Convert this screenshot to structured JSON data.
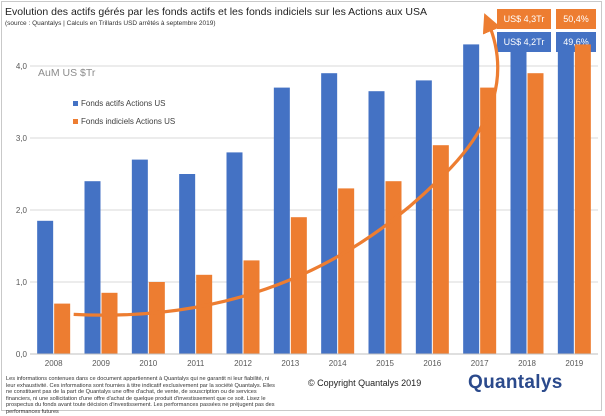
{
  "header": {
    "title": "Evolution des actifs gérés par les fonds actifs et les fonds indiciels sur les Actions aux USA",
    "subtitle": "(source : Quantalys | Calculs en Trillards USD arrêtés à septembre 2019)"
  },
  "callouts": {
    "passive_value": "US$ 4,3Tr",
    "passive_share": "50,4%",
    "active_value": "US$ 4,2Tr",
    "active_share": "49,6%"
  },
  "colors": {
    "active": "#4472C4",
    "passive": "#ED7D31",
    "grid": "#d9d9d9",
    "axis_text": "#595959"
  },
  "chart_data": {
    "type": "bar",
    "title": "AuM US $Tr",
    "categories": [
      "2008",
      "2009",
      "2010",
      "2011",
      "2012",
      "2013",
      "2014",
      "2015",
      "2016",
      "2017",
      "2018",
      "2019"
    ],
    "series": [
      {
        "name": "Fonds actifs Actions US",
        "color": "#4472C4",
        "values": [
          1.85,
          2.4,
          2.7,
          2.5,
          2.8,
          3.7,
          3.9,
          3.65,
          3.8,
          4.3,
          4.25,
          4.2
        ]
      },
      {
        "name": "Fonds indiciels Actions US",
        "color": "#ED7D31",
        "values": [
          0.7,
          0.85,
          1.0,
          1.1,
          1.3,
          1.9,
          2.3,
          2.4,
          2.9,
          3.7,
          3.9,
          4.3
        ]
      }
    ],
    "yticks": [
      "0,0",
      "1,0",
      "2,0",
      "3,0",
      "4,0"
    ],
    "ylim": [
      0,
      4.5
    ],
    "grid": true,
    "legend_position": "left",
    "trend_arrow": true
  },
  "footer": {
    "disclaimer": "Les informations contenues dans ce document appartiennent à Quantalys qui ne garantit ni leur fiabilité, ni leur exhaustivité. Ces informations sont fournies à titre indicatif exclusivement par la société Quantalys. Elles ne constituent pas de la part de Quantalys une offre d'achat, de vente, de souscription ou de services financiers, ni une sollicitation d'une offre d'achat de quelque produit d'investissement que ce soit. Lisez le prospectus du fonds avant toute décision d'investissement. Les performances passées ne préjugent pas des performances futures",
    "copyright": "© Copyright Quantalys 2019",
    "logo": "Quantalys"
  }
}
